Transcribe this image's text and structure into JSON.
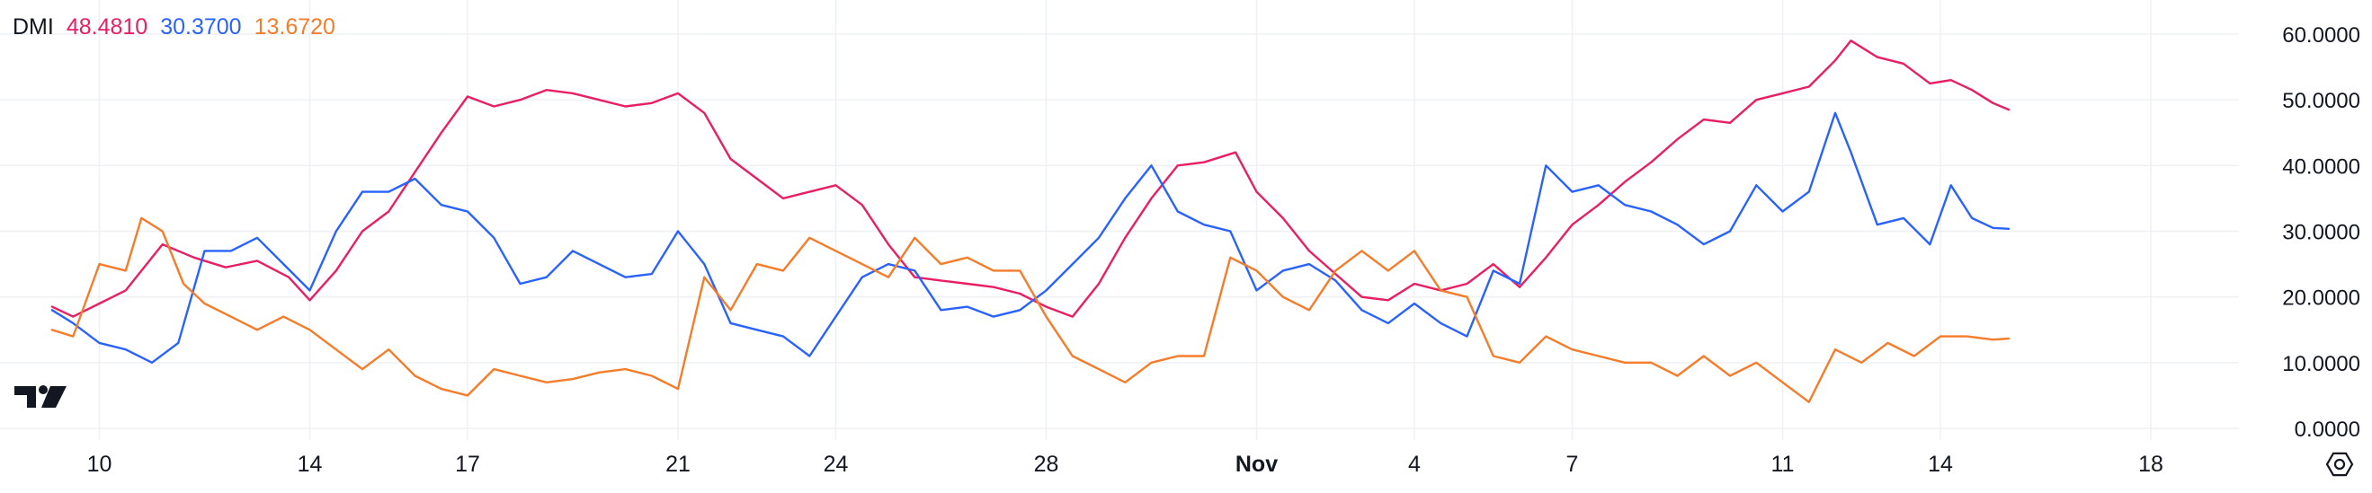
{
  "indicator": {
    "name": "DMI",
    "values": [
      "48.4810",
      "30.3700",
      "13.6720"
    ]
  },
  "colors": {
    "adx": "#e91e63",
    "plus_di": "#2962ff",
    "minus_di": "#f57c2a",
    "text": "#131722",
    "axis_text": "#131722",
    "grid": "#eef0f3",
    "logo": "#131722"
  },
  "icons": {
    "logo": "tradingview-logo",
    "settings": "settings-icon"
  },
  "chart_data": {
    "type": "line",
    "ylim": [
      0,
      60
    ],
    "grid": true,
    "y_ticks": [
      "60.0000",
      "50.0000",
      "40.0000",
      "30.0000",
      "20.0000",
      "10.0000",
      "0.0000"
    ],
    "y_tick_values": [
      60,
      50,
      40,
      30,
      20,
      10,
      0
    ],
    "x_ticks": [
      {
        "label": "10",
        "index": 1
      },
      {
        "label": "14",
        "index": 5
      },
      {
        "label": "17",
        "index": 8
      },
      {
        "label": "21",
        "index": 12
      },
      {
        "label": "24",
        "index": 15
      },
      {
        "label": "28",
        "index": 19
      },
      {
        "label": "Nov",
        "index": 23,
        "bold": true
      },
      {
        "label": "4",
        "index": 26
      },
      {
        "label": "7",
        "index": 29
      },
      {
        "label": "11",
        "index": 33
      },
      {
        "label": "14",
        "index": 36
      },
      {
        "label": "18",
        "index": 40
      }
    ],
    "x_range": [
      0.1,
      44.8
    ],
    "series": [
      {
        "color_key": "adx",
        "last_value": 48.481,
        "points": [
          [
            0.1,
            18.5
          ],
          [
            0.5,
            17
          ],
          [
            1,
            19
          ],
          [
            1.5,
            21
          ],
          [
            2.2,
            28
          ],
          [
            2.8,
            26
          ],
          [
            3.4,
            24.5
          ],
          [
            4,
            25.5
          ],
          [
            4.6,
            23
          ],
          [
            5,
            19.5
          ],
          [
            5.5,
            24
          ],
          [
            6,
            30
          ],
          [
            6.5,
            33
          ],
          [
            7,
            39
          ],
          [
            7.5,
            45
          ],
          [
            8,
            50.5
          ],
          [
            8.5,
            49
          ],
          [
            9,
            50
          ],
          [
            9.5,
            51.5
          ],
          [
            10,
            51
          ],
          [
            10.5,
            50
          ],
          [
            11,
            49
          ],
          [
            11.5,
            49.5
          ],
          [
            12,
            51
          ],
          [
            12.5,
            48
          ],
          [
            13,
            41
          ],
          [
            13.5,
            38
          ],
          [
            14,
            35
          ],
          [
            14.5,
            36
          ],
          [
            15,
            37
          ],
          [
            15.5,
            34
          ],
          [
            16,
            28
          ],
          [
            16.5,
            23
          ],
          [
            17,
            22.5
          ],
          [
            17.5,
            22
          ],
          [
            18,
            21.5
          ],
          [
            18.5,
            20.5
          ],
          [
            19,
            18.5
          ],
          [
            19.5,
            17
          ],
          [
            20,
            22
          ],
          [
            20.5,
            29
          ],
          [
            21,
            35
          ],
          [
            21.5,
            40
          ],
          [
            22,
            40.5
          ],
          [
            22.6,
            42
          ],
          [
            23,
            36
          ],
          [
            23.5,
            32
          ],
          [
            24,
            27
          ],
          [
            24.5,
            23.5
          ],
          [
            25,
            20
          ],
          [
            25.5,
            19.5
          ],
          [
            26,
            22
          ],
          [
            26.5,
            21
          ],
          [
            27,
            22
          ],
          [
            27.5,
            25
          ],
          [
            28,
            21.5
          ],
          [
            28.5,
            26
          ],
          [
            29,
            31
          ],
          [
            29.5,
            34
          ],
          [
            30,
            37.5
          ],
          [
            30.5,
            40.5
          ],
          [
            31,
            44
          ],
          [
            31.5,
            47
          ],
          [
            32,
            46.5
          ],
          [
            32.5,
            50
          ],
          [
            33,
            51
          ],
          [
            33.5,
            52
          ],
          [
            34,
            56
          ],
          [
            34.3,
            59
          ],
          [
            34.8,
            56.5
          ],
          [
            35.3,
            55.5
          ],
          [
            35.8,
            52.5
          ],
          [
            36.2,
            53
          ],
          [
            36.6,
            51.5
          ],
          [
            37,
            49.5
          ],
          [
            37.3,
            48.5
          ]
        ]
      },
      {
        "color_key": "plus_di",
        "last_value": 30.37,
        "points": [
          [
            0.1,
            18
          ],
          [
            0.5,
            16
          ],
          [
            1,
            13
          ],
          [
            1.5,
            12
          ],
          [
            2,
            10
          ],
          [
            2.5,
            13
          ],
          [
            3,
            27
          ],
          [
            3.5,
            27
          ],
          [
            4,
            29
          ],
          [
            4.5,
            25
          ],
          [
            5,
            21
          ],
          [
            5.5,
            30
          ],
          [
            6,
            36
          ],
          [
            6.5,
            36
          ],
          [
            7,
            38
          ],
          [
            7.5,
            34
          ],
          [
            8,
            33
          ],
          [
            8.5,
            29
          ],
          [
            9,
            22
          ],
          [
            9.5,
            23
          ],
          [
            10,
            27
          ],
          [
            10.5,
            25
          ],
          [
            11,
            23
          ],
          [
            11.5,
            23.5
          ],
          [
            12,
            30
          ],
          [
            12.5,
            25
          ],
          [
            13,
            16
          ],
          [
            13.5,
            15
          ],
          [
            14,
            14
          ],
          [
            14.5,
            11
          ],
          [
            15,
            17
          ],
          [
            15.5,
            23
          ],
          [
            16,
            25
          ],
          [
            16.5,
            24
          ],
          [
            17,
            18
          ],
          [
            17.5,
            18.5
          ],
          [
            18,
            17
          ],
          [
            18.5,
            18
          ],
          [
            19,
            21
          ],
          [
            19.5,
            25
          ],
          [
            20,
            29
          ],
          [
            20.5,
            35
          ],
          [
            21,
            40
          ],
          [
            21.5,
            33
          ],
          [
            22,
            31
          ],
          [
            22.5,
            30
          ],
          [
            23,
            21
          ],
          [
            23.5,
            24
          ],
          [
            24,
            25
          ],
          [
            24.5,
            22.5
          ],
          [
            25,
            18
          ],
          [
            25.5,
            16
          ],
          [
            26,
            19
          ],
          [
            26.5,
            16
          ],
          [
            27,
            14
          ],
          [
            27.5,
            24
          ],
          [
            28,
            22
          ],
          [
            28.5,
            40
          ],
          [
            29,
            36
          ],
          [
            29.5,
            37
          ],
          [
            30,
            34
          ],
          [
            30.5,
            33
          ],
          [
            31,
            31
          ],
          [
            31.5,
            28
          ],
          [
            32,
            30
          ],
          [
            32.5,
            37
          ],
          [
            33,
            33
          ],
          [
            33.5,
            36
          ],
          [
            34,
            48
          ],
          [
            34.3,
            42
          ],
          [
            34.8,
            31
          ],
          [
            35.3,
            32
          ],
          [
            35.8,
            28
          ],
          [
            36.2,
            37
          ],
          [
            36.6,
            32
          ],
          [
            37,
            30.5
          ],
          [
            37.3,
            30.37
          ]
        ]
      },
      {
        "color_key": "minus_di",
        "last_value": 13.672,
        "points": [
          [
            0.1,
            15
          ],
          [
            0.5,
            14
          ],
          [
            1,
            25
          ],
          [
            1.5,
            24
          ],
          [
            1.8,
            32
          ],
          [
            2.2,
            30
          ],
          [
            2.6,
            22
          ],
          [
            3,
            19
          ],
          [
            3.5,
            17
          ],
          [
            4,
            15
          ],
          [
            4.5,
            17
          ],
          [
            5,
            15
          ],
          [
            5.5,
            12
          ],
          [
            6,
            9
          ],
          [
            6.5,
            12
          ],
          [
            7,
            8
          ],
          [
            7.5,
            6
          ],
          [
            8,
            5
          ],
          [
            8.5,
            9
          ],
          [
            9,
            8
          ],
          [
            9.5,
            7
          ],
          [
            10,
            7.5
          ],
          [
            10.5,
            8.5
          ],
          [
            11,
            9
          ],
          [
            11.5,
            8
          ],
          [
            12,
            6
          ],
          [
            12.5,
            23
          ],
          [
            13,
            18
          ],
          [
            13.5,
            25
          ],
          [
            14,
            24
          ],
          [
            14.5,
            29
          ],
          [
            15,
            27
          ],
          [
            15.5,
            25
          ],
          [
            16,
            23
          ],
          [
            16.5,
            29
          ],
          [
            17,
            25
          ],
          [
            17.5,
            26
          ],
          [
            18,
            24
          ],
          [
            18.5,
            24
          ],
          [
            19,
            17
          ],
          [
            19.5,
            11
          ],
          [
            20,
            9
          ],
          [
            20.5,
            7
          ],
          [
            21,
            10
          ],
          [
            21.5,
            11
          ],
          [
            22,
            11
          ],
          [
            22.5,
            26
          ],
          [
            23,
            24
          ],
          [
            23.5,
            20
          ],
          [
            24,
            18
          ],
          [
            24.5,
            24
          ],
          [
            25,
            27
          ],
          [
            25.5,
            24
          ],
          [
            26,
            27
          ],
          [
            26.5,
            21
          ],
          [
            27,
            20
          ],
          [
            27.5,
            11
          ],
          [
            28,
            10
          ],
          [
            28.5,
            14
          ],
          [
            29,
            12
          ],
          [
            29.5,
            11
          ],
          [
            30,
            10
          ],
          [
            30.5,
            10
          ],
          [
            31,
            8
          ],
          [
            31.5,
            11
          ],
          [
            32,
            8
          ],
          [
            32.5,
            10
          ],
          [
            33,
            7
          ],
          [
            33.5,
            4
          ],
          [
            34,
            12
          ],
          [
            34.5,
            10
          ],
          [
            35,
            13
          ],
          [
            35.5,
            11
          ],
          [
            36,
            14
          ],
          [
            36.5,
            14
          ],
          [
            37,
            13.5
          ],
          [
            37.3,
            13.672
          ]
        ]
      }
    ]
  }
}
